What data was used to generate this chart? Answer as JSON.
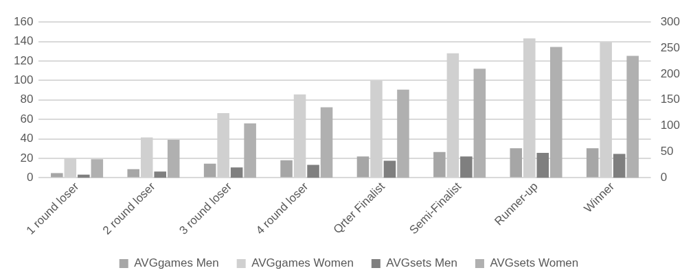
{
  "chart_data": {
    "type": "bar",
    "categories": [
      "1 round loser",
      "2 round loser",
      "3 round loser",
      "4 round loser",
      "Qrter Finalist",
      "Semi-Finalist",
      "Runner-up",
      "Winner"
    ],
    "series": [
      {
        "name": "AVGgames Men",
        "color": "#a6a6a6",
        "values": [
          4.8,
          8.9,
          14.6,
          18.1,
          22,
          26.6,
          30.4,
          30.4
        ]
      },
      {
        "name": "AVGgames Women",
        "color": "#d0d0d0",
        "values": [
          20,
          41.5,
          66.5,
          85.7,
          100,
          128,
          143.3,
          139.5
        ]
      },
      {
        "name": "AVGsets Men",
        "color": "#7f7f7f",
        "axis": "y2",
        "values": [
          6,
          12,
          20,
          25,
          33,
          41,
          48,
          46
        ]
      },
      {
        "name": "AVGsets Women",
        "color": "#b0b0b0",
        "axis": "y2",
        "values": [
          36,
          73,
          105,
          136,
          170,
          210,
          252,
          235
        ]
      }
    ],
    "ylim": [
      0,
      160
    ],
    "yticks": [
      0,
      20,
      40,
      60,
      80,
      100,
      120,
      140,
      160
    ],
    "y2lim": [
      0,
      300
    ],
    "y2ticks": [
      0,
      50,
      100,
      150,
      200,
      250,
      300
    ],
    "grid": "y",
    "legend": "bottom"
  }
}
